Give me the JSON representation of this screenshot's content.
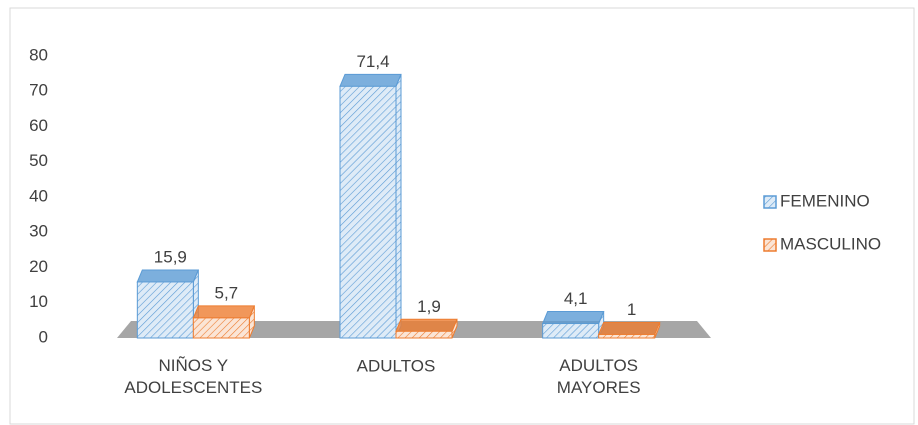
{
  "chart_data": {
    "type": "bar3d",
    "categories": [
      "NIÑOS Y\nADOLESCENTES",
      "ADULTOS",
      "ADULTOS\nMAYORES"
    ],
    "series": [
      {
        "name": "FEMENINO",
        "color": "#5b9bd5",
        "values": [
          15.9,
          71.4,
          4.1
        ],
        "value_labels": [
          "15,9",
          "71,4",
          "4,1"
        ]
      },
      {
        "name": "MASCULINO",
        "color": "#ed7d31",
        "values": [
          5.7,
          1.9,
          1
        ],
        "value_labels": [
          "5,7",
          "1,9",
          "1"
        ]
      }
    ],
    "ylim": [
      0,
      80
    ],
    "yticks": [
      0,
      10,
      20,
      30,
      40,
      50,
      60,
      70,
      80
    ],
    "grid": false,
    "legend": "right"
  }
}
